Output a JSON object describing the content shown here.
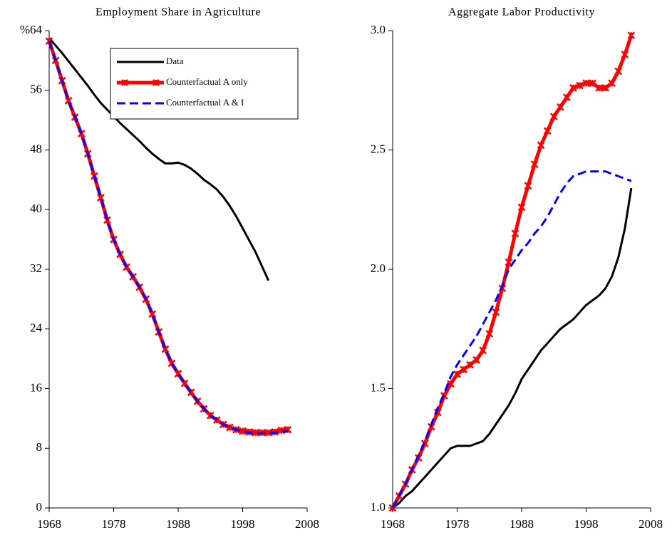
{
  "chart_data": [
    {
      "type": "line",
      "title": "Employment Share in Agriculture",
      "x": [
        1968,
        1969,
        1970,
        1971,
        1972,
        1973,
        1974,
        1975,
        1976,
        1977,
        1978,
        1979,
        1980,
        1981,
        1982,
        1983,
        1984,
        1985,
        1986,
        1987,
        1988,
        1989,
        1990,
        1991,
        1992,
        1993,
        1994,
        1995,
        1996,
        1997,
        1998,
        1999,
        2000,
        2001,
        2002,
        2003,
        2004,
        2005
      ],
      "xlim": [
        1968,
        2008
      ],
      "xticks": [
        1968,
        1978,
        1988,
        1998,
        2008
      ],
      "ylim": [
        0,
        64
      ],
      "yticks": [
        0,
        8,
        16,
        24,
        32,
        40,
        48,
        56,
        {
          "value": 64,
          "label": "%64"
        }
      ],
      "legend": "upper-right",
      "series": [
        {
          "name": "Data",
          "color": "#000000",
          "width": 3,
          "values": [
            63,
            62,
            61,
            59.9,
            58.8,
            57.7,
            56.6,
            55.4,
            54.3,
            53.4,
            52.5,
            51.6,
            50.8,
            50,
            49.2,
            48.3,
            47.5,
            46.8,
            46.2,
            46.2,
            46.3,
            46,
            45.5,
            44.8,
            44,
            43.4,
            42.7,
            41.7,
            40.5,
            39.1,
            37.5,
            35.9,
            34.3,
            32.4,
            30.5,
            null,
            null,
            null
          ]
        },
        {
          "name": "Counterfactual A only",
          "color": "#ff0000",
          "width": 5,
          "markers": true,
          "values": [
            62.6,
            60,
            57.3,
            54.6,
            52.4,
            50.2,
            47.5,
            44.5,
            41.6,
            38.6,
            36,
            34,
            32.3,
            31,
            29.6,
            28,
            26,
            23.6,
            21.3,
            19.4,
            18,
            16.7,
            15.5,
            14.3,
            13.3,
            12.4,
            11.8,
            11.2,
            10.8,
            10.5,
            10.3,
            10.2,
            10.1,
            10.1,
            10.1,
            10.2,
            10.4,
            10.5
          ]
        },
        {
          "name": "Counterfactual A & I",
          "color": "#0000ff",
          "width": 3,
          "dashed": true,
          "values": [
            62.6,
            60,
            57.3,
            54.6,
            52.4,
            50.2,
            47.5,
            44.5,
            41.6,
            38.6,
            36,
            34,
            32.3,
            31,
            29.6,
            28,
            26,
            23.6,
            21.3,
            19.4,
            18,
            16.7,
            15.5,
            14.3,
            13.3,
            12.4,
            11.8,
            11.2,
            10.8,
            10.5,
            10.3,
            10.1,
            10.0,
            10.0,
            10.0,
            10.1,
            10.2,
            10.3
          ]
        }
      ]
    },
    {
      "type": "line",
      "title": "Aggregate Labor Productivity",
      "x": [
        1968,
        1969,
        1970,
        1971,
        1972,
        1973,
        1974,
        1975,
        1976,
        1977,
        1978,
        1979,
        1980,
        1981,
        1982,
        1983,
        1984,
        1985,
        1986,
        1987,
        1988,
        1989,
        1990,
        1991,
        1992,
        1993,
        1994,
        1995,
        1996,
        1997,
        1998,
        1999,
        2000,
        2001,
        2002,
        2003,
        2004,
        2005
      ],
      "xlim": [
        1968,
        2008
      ],
      "xticks": [
        1968,
        1978,
        1988,
        1998,
        2008
      ],
      "ylim": [
        1,
        3
      ],
      "yticks": [
        {
          "value": 1,
          "label": "1.0"
        },
        1.5,
        {
          "value": 2,
          "label": "2.0"
        },
        2.5,
        {
          "value": 3,
          "label": "3.0"
        }
      ],
      "series": [
        {
          "color": "#000000",
          "width": 3,
          "values": [
            1.0,
            1.02,
            1.05,
            1.07,
            1.1,
            1.13,
            1.16,
            1.19,
            1.22,
            1.25,
            1.26,
            1.26,
            1.26,
            1.27,
            1.28,
            1.31,
            1.35,
            1.39,
            1.43,
            1.48,
            1.54,
            1.58,
            1.62,
            1.66,
            1.69,
            1.72,
            1.75,
            1.77,
            1.79,
            1.82,
            1.85,
            1.87,
            1.89,
            1.92,
            1.97,
            2.05,
            2.17,
            2.34
          ]
        },
        {
          "color": "#ff0000",
          "width": 5,
          "markers": true,
          "values": [
            1.0,
            1.05,
            1.1,
            1.16,
            1.21,
            1.27,
            1.34,
            1.4,
            1.47,
            1.52,
            1.56,
            1.58,
            1.6,
            1.62,
            1.66,
            1.73,
            1.82,
            1.92,
            2.03,
            2.15,
            2.26,
            2.35,
            2.44,
            2.52,
            2.58,
            2.64,
            2.68,
            2.72,
            2.76,
            2.77,
            2.78,
            2.78,
            2.76,
            2.76,
            2.78,
            2.83,
            2.9,
            2.98
          ]
        },
        {
          "color": "#0000ff",
          "width": 3,
          "dashed": true,
          "values": [
            1.0,
            1.05,
            1.1,
            1.16,
            1.22,
            1.28,
            1.35,
            1.42,
            1.48,
            1.55,
            1.6,
            1.64,
            1.68,
            1.72,
            1.77,
            1.82,
            1.87,
            1.93,
            2.0,
            2.04,
            2.08,
            2.11,
            2.15,
            2.18,
            2.22,
            2.27,
            2.32,
            2.36,
            2.39,
            2.4,
            2.41,
            2.41,
            2.41,
            2.41,
            2.4,
            2.39,
            2.38,
            2.37
          ]
        }
      ]
    }
  ]
}
